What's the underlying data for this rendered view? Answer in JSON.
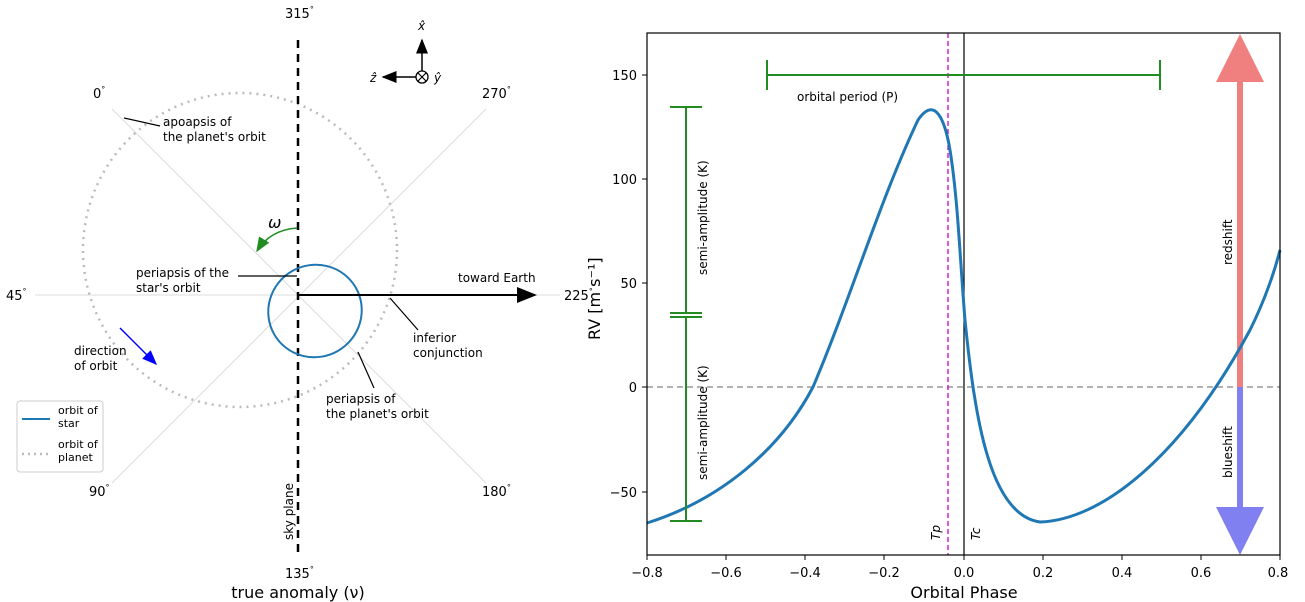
{
  "orbit_diagram": {
    "angle_labels": [
      "315",
      "0",
      "270",
      "45",
      "225",
      "90",
      "180",
      "135"
    ],
    "degree_sign": "°",
    "axis_xlabel": "true anomaly (ν)",
    "unit_vectors": {
      "x": "x̂",
      "y": "ŷ",
      "z": "ẑ"
    },
    "omega_symbol": "ω",
    "labels": {
      "apoapsis_line1": "apoapsis of",
      "apoapsis_line2": "the planet's orbit",
      "periapsis_star_line1": "periapsis of the",
      "periapsis_star_line2": "star's orbit",
      "toward_earth": "toward Earth",
      "inferior_line1": "inferior",
      "inferior_line2": "conjunction",
      "direction_line1": "direction",
      "direction_line2": "of orbit",
      "periapsis_planet_line1": "periapsis of",
      "periapsis_planet_line2": "the planet's orbit",
      "sky_plane": "sky plane"
    },
    "legend": [
      {
        "line1": "orbit of",
        "line2": "star",
        "color": "#1f77b4",
        "style": "solid"
      },
      {
        "line1": "orbit of",
        "line2": "planet",
        "color": "#bbbbbb",
        "style": "dotted"
      }
    ]
  },
  "rv_plot": {
    "ylabel": "RV [m s⁻¹]",
    "xlabel": "Orbital Phase",
    "period_label": "orbital period (P)",
    "K_label": "semi-amplitude (K)",
    "redshift_label": "redshift",
    "blueshift_label": "blueshift",
    "tp_label": "Tp",
    "tc_label": "Tc",
    "x_ticks": [
      "−0.8",
      "−0.6",
      "−0.4",
      "−0.2",
      "0.0",
      "0.2",
      "0.4",
      "0.6",
      "0.8"
    ],
    "y_ticks": [
      "150",
      "100",
      "50",
      "0",
      "−50"
    ],
    "colors": {
      "curve": "#1f77b4",
      "bracket": "#228B22",
      "tp": "#cc00cc",
      "red": "#f08080",
      "blue": "#8080f0"
    }
  },
  "chart_data": {
    "type": "line",
    "xlabel": "Orbital Phase",
    "ylabel": "RV [m s⁻¹]",
    "xlim": [
      -0.8,
      0.8
    ],
    "ylim": [
      -80,
      170
    ],
    "series": [
      {
        "x": [
          -0.8,
          -0.7,
          -0.6,
          -0.5,
          -0.4,
          -0.3,
          -0.2,
          -0.15,
          -0.1,
          -0.08,
          -0.06,
          -0.04,
          -0.02,
          0.0,
          0.02,
          0.05,
          0.1,
          0.15,
          0.18,
          0.25,
          0.35,
          0.45,
          0.55,
          0.65,
          0.75,
          0.8
        ],
        "y": [
          -65,
          -57,
          -43,
          -25,
          0,
          33,
          78,
          108,
          132,
          135,
          128,
          100,
          65,
          35,
          2,
          -35,
          -58,
          -64,
          -65,
          -62,
          -51,
          -35,
          -14,
          8,
          42,
          66
        ]
      }
    ],
    "annotations": {
      "period_bar_x": [
        -0.5,
        0.5
      ],
      "period_bar_y": 150,
      "K_upper_y": [
        35,
        135
      ],
      "K_lower_y": [
        -65,
        35
      ],
      "K_x": -0.7,
      "tp_x": -0.04,
      "tc_x": 0.0,
      "zero_line_y": 0,
      "shift_arrow_x": 0.7
    }
  }
}
